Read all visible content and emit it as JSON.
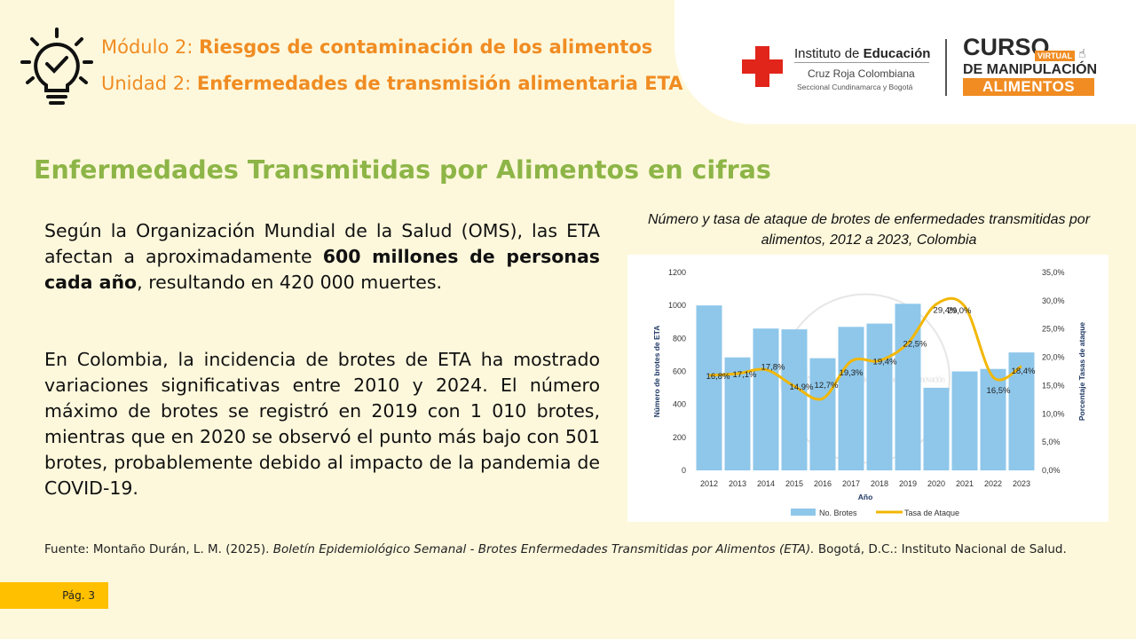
{
  "header": {
    "module_prefix": "Módulo 2: ",
    "module_title": "Riesgos de contaminación de los alimentos",
    "unit_prefix": "Unidad 2: ",
    "unit_title": "Enfermedades de transmisión alimentaria ETA"
  },
  "logos": {
    "institute_light": "Instituto de ",
    "institute_bold": "Educación",
    "org_name": "Cruz Roja Colombiana",
    "org_section": "Seccional Cundinamarca y Bogotá",
    "course_word": "CURSO",
    "course_virtual": "VIRTUAL",
    "course_de_manip": "DE MANIPULACIÓN",
    "course_de": "DE",
    "course_alimentos": "ALIMENTOS"
  },
  "page_title": "Enfermedades Transmitidas por Alimentos en cifras",
  "body": {
    "p1_a": "Según la Organización Mundial de la Salud (OMS), las ETA afectan a aproximadamente ",
    "p1_bold": "600 millones de personas cada año",
    "p1_b": ", resultando en 420 000 muertes.",
    "p2": "En Colombia, la incidencia de brotes de ETA ha mostrado variaciones significativas entre 2010 y 2024. El número máximo de brotes se registró en 2019 con 1 010 brotes, mientras que en 2020 se observó el punto más bajo con 501 brotes, probablemente debido al impacto de la pandemia de COVID-19."
  },
  "chart_title": "Número y tasa de ataque de brotes de enfermedades transmitidas por alimentos, 2012 a 2023, Colombia",
  "chart_data": {
    "type": "bar",
    "categories": [
      "2012",
      "2013",
      "2014",
      "2015",
      "2016",
      "2017",
      "2018",
      "2019",
      "2020",
      "2021",
      "2022",
      "2023"
    ],
    "series": [
      {
        "name": "No. Brotes",
        "type": "bar",
        "axis": "left",
        "color": "#8ec7ea",
        "values": [
          1000,
          685,
          860,
          855,
          680,
          870,
          890,
          1010,
          501,
          600,
          615,
          715
        ]
      },
      {
        "name": "Tasa de Ataque",
        "type": "line",
        "axis": "right",
        "color": "#f2b705",
        "values": [
          16.8,
          17.1,
          17.8,
          14.9,
          12.7,
          19.3,
          19.4,
          22.5,
          29.4,
          29.0,
          16.5,
          18.4
        ],
        "labels": [
          "16,8%",
          "17,1%",
          "17,8%",
          "14,9%",
          "12,7%",
          "19,3%",
          "19,4%",
          "22,5%",
          "29,4%",
          "29,0%",
          "16,5%",
          "18,4%"
        ]
      }
    ],
    "xlabel": "Año",
    "ylabel": "Número de brotes de ETA",
    "y2label": "Porcentaje Tasas de ataque",
    "ylim": [
      0,
      1200
    ],
    "yticks": [
      "0",
      "200",
      "400",
      "600",
      "800",
      "1000",
      "1200"
    ],
    "y2lim": [
      0,
      35
    ],
    "y2ticks": [
      "0,0%",
      "5,0%",
      "10,0%",
      "15,0%",
      "20,0%",
      "25,0%",
      "30,0%",
      "35,0%"
    ],
    "legend": [
      "No. Brotes",
      "Tasa de Ataque"
    ],
    "legend_position": "bottom",
    "watermark_text": "Instituto Nacional de Salud · Ciencia, Tecnología e Innovación",
    "grid": false
  },
  "source": {
    "prefix": "Fuente: Montaño Durán, L. M. (2025). ",
    "italic": "Boletín Epidemiológico Semanal - Brotes Enfermedades Transmitidas por Alimentos (ETA).",
    "suffix": " Bogotá, D.C.: Instituto Nacional de Salud."
  },
  "page_number": "Pág. 3",
  "colors": {
    "accent_orange": "#f08c22",
    "title_green": "#8db547",
    "page_tag": "#ffc000",
    "red_cross": "#e1251b"
  }
}
